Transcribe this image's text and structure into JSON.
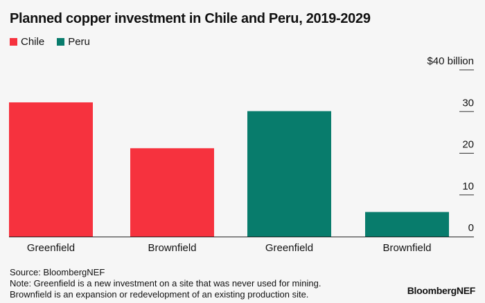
{
  "chart_data": {
    "type": "bar",
    "title": "Planned copper investment in Chile and Peru, 2019-2029",
    "categories": [
      "Greenfield",
      "Brownfield",
      "Greenfield",
      "Brownfield"
    ],
    "series": [
      {
        "name": "Chile",
        "color": "#f6323e",
        "values": [
          32.2,
          21.2,
          null,
          null
        ]
      },
      {
        "name": "Peru",
        "color": "#087c6c",
        "values": [
          null,
          null,
          30.1,
          5.9
        ]
      }
    ],
    "values": [
      32.2,
      21.2,
      30.1,
      5.9
    ],
    "bar_colors": [
      "#f6323e",
      "#f6323e",
      "#087c6c",
      "#087c6c"
    ],
    "ylim": [
      0,
      40
    ],
    "yticks": [
      0,
      10,
      20,
      30,
      40
    ],
    "ytick_labels": [
      "0",
      "10",
      "20",
      "30",
      "$40 billion"
    ],
    "xlabel": "",
    "ylabel": "",
    "legend": "top-left"
  },
  "footer": {
    "source": "Source: BloombergNEF",
    "note1": "Note: Greenfield is a new investment on a site that was never used for mining.",
    "note2": "Brownfield is an expansion or redevelopment of an existing production site.",
    "brand": "BloombergNEF"
  }
}
